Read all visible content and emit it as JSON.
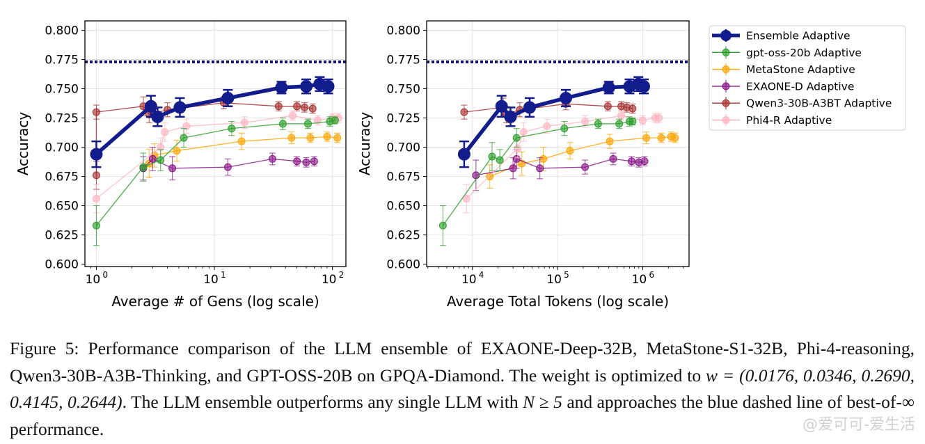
{
  "chart_data": [
    {
      "type": "scatter",
      "xlabel": "Average # of Gens (log scale)",
      "ylabel": "Accuracy",
      "xscale": "log",
      "xlim": [
        0.8,
        130
      ],
      "ylim": [
        0.598,
        0.808
      ],
      "yticks": [
        "0.600",
        "0.625",
        "0.650",
        "0.675",
        "0.700",
        "0.725",
        "0.750",
        "0.775",
        "0.800"
      ],
      "xticks": [
        {
          "v": 1,
          "b": "10",
          "e": "0"
        },
        {
          "v": 10,
          "b": "10",
          "e": "1"
        },
        {
          "v": 100,
          "b": "10",
          "e": "2"
        }
      ],
      "grid": true,
      "hline": 0.773,
      "series": [
        {
          "name": "gpt-oss-20b Adaptive",
          "color": "#2ca02c",
          "points": [
            [
              1,
              0.633,
              0.017
            ],
            [
              2.5,
              0.683,
              0.012
            ],
            [
              3.5,
              0.689,
              0.009
            ],
            [
              5.5,
              0.708,
              0.008
            ],
            [
              14,
              0.716,
              0.006
            ],
            [
              38,
              0.72,
              0.005
            ],
            [
              62,
              0.72,
              0.004
            ],
            [
              95,
              0.722,
              0.004
            ],
            [
              105,
              0.723,
              0.003
            ]
          ]
        },
        {
          "name": "MetaStone Adaptive",
          "color": "#ffa500",
          "points": [
            [
              2.8,
              0.686,
              0.012
            ],
            [
              3.1,
              0.693,
              0.01
            ],
            [
              4.8,
              0.697,
              0.009
            ],
            [
              17,
              0.705,
              0.007
            ],
            [
              45,
              0.708,
              0.005
            ],
            [
              65,
              0.708,
              0.004
            ],
            [
              90,
              0.709,
              0.004
            ],
            [
              110,
              0.708,
              0.004
            ]
          ]
        },
        {
          "name": "EXAONE-D Adaptive",
          "color": "#8b1a8b",
          "points": [
            [
              2.5,
              0.682,
              0.01
            ],
            [
              3.0,
              0.69,
              0.01
            ],
            [
              4.4,
              0.682,
              0.01
            ],
            [
              13,
              0.683,
              0.007
            ],
            [
              31,
              0.69,
              0.005
            ],
            [
              50,
              0.688,
              0.004
            ],
            [
              60,
              0.687,
              0.004
            ],
            [
              70,
              0.688,
              0.004
            ]
          ]
        },
        {
          "name": "Qwen3-30B-A3BT Adaptive",
          "color": "#a83232",
          "points": [
            [
              1,
              0.676,
              0.012
            ],
            [
              1,
              0.73,
              0.006
            ],
            [
              2.5,
              0.735,
              0.008
            ],
            [
              2.8,
              0.728,
              0.007
            ],
            [
              4,
              0.732,
              0.006
            ],
            [
              12,
              0.738,
              0.005
            ],
            [
              35,
              0.735,
              0.004
            ],
            [
              50,
              0.735,
              0.004
            ],
            [
              58,
              0.734,
              0.004
            ],
            [
              68,
              0.733,
              0.004
            ]
          ]
        },
        {
          "name": "Phi4-R Adaptive",
          "color": "#ffb6c1",
          "points": [
            [
              1,
              0.656,
              0.012
            ],
            [
              3.5,
              0.7,
              0.008
            ],
            [
              3.8,
              0.713,
              0.008
            ],
            [
              5.8,
              0.718,
              0.006
            ],
            [
              18,
              0.721,
              0.005
            ],
            [
              46,
              0.727,
              0.004
            ],
            [
              75,
              0.723,
              0.004
            ],
            [
              100,
              0.725,
              0.004
            ],
            [
              112,
              0.725,
              0.004
            ]
          ]
        },
        {
          "name": "Ensemble Adaptive",
          "color": "#131c8c",
          "points": [
            [
              1,
              0.694,
              0.011
            ],
            [
              2.9,
              0.735,
              0.009
            ],
            [
              3.3,
              0.726,
              0.008
            ],
            [
              5.1,
              0.734,
              0.008
            ],
            [
              13,
              0.742,
              0.007
            ],
            [
              37,
              0.751,
              0.005
            ],
            [
              60,
              0.752,
              0.006
            ],
            [
              78,
              0.754,
              0.006
            ],
            [
              92,
              0.752,
              0.006
            ]
          ]
        }
      ]
    },
    {
      "type": "scatter",
      "xlabel": "Average Total Tokens (log scale)",
      "ylabel": "Accuracy",
      "xscale": "log",
      "xlim": [
        2900,
        3500000
      ],
      "ylim": [
        0.598,
        0.808
      ],
      "yticks": [
        "0.600",
        "0.625",
        "0.650",
        "0.675",
        "0.700",
        "0.725",
        "0.750",
        "0.775",
        "0.800"
      ],
      "xticks": [
        {
          "v": 10000,
          "b": "10",
          "e": "4"
        },
        {
          "v": 100000,
          "b": "10",
          "e": "5"
        },
        {
          "v": 1000000,
          "b": "10",
          "e": "6"
        }
      ],
      "grid": true,
      "hline": 0.773,
      "series": [
        {
          "name": "gpt-oss-20b Adaptive",
          "color": "#2ca02c",
          "points": [
            [
              4500,
              0.633,
              0.017
            ],
            [
              17000,
              0.692,
              0.012
            ],
            [
              21000,
              0.689,
              0.009
            ],
            [
              33000,
              0.708,
              0.008
            ],
            [
              120000,
              0.716,
              0.006
            ],
            [
              300000,
              0.72,
              0.004
            ],
            [
              530000,
              0.72,
              0.004
            ],
            [
              700000,
              0.722,
              0.004
            ],
            [
              760000,
              0.722,
              0.003
            ]
          ]
        },
        {
          "name": "MetaStone Adaptive",
          "color": "#ffa500",
          "points": [
            [
              16000,
              0.675,
              0.01
            ],
            [
              38000,
              0.686,
              0.01
            ],
            [
              68000,
              0.69,
              0.01
            ],
            [
              140000,
              0.697,
              0.007
            ],
            [
              410000,
              0.705,
              0.006
            ],
            [
              1100000,
              0.708,
              0.005
            ],
            [
              1650000,
              0.708,
              0.004
            ],
            [
              2150000,
              0.709,
              0.004
            ],
            [
              2400000,
              0.708,
              0.004
            ]
          ]
        },
        {
          "name": "EXAONE-D Adaptive",
          "color": "#8b1a8b",
          "points": [
            [
              11000,
              0.676,
              0.013
            ],
            [
              30000,
              0.682,
              0.009
            ],
            [
              33000,
              0.69,
              0.008
            ],
            [
              62000,
              0.682,
              0.009
            ],
            [
              210000,
              0.683,
              0.006
            ],
            [
              450000,
              0.69,
              0.005
            ],
            [
              740000,
              0.688,
              0.004
            ],
            [
              900000,
              0.687,
              0.004
            ],
            [
              1050000,
              0.688,
              0.004
            ]
          ]
        },
        {
          "name": "Qwen3-30B-A3BT Adaptive",
          "color": "#a83232",
          "points": [
            [
              8000,
              0.73,
              0.006
            ],
            [
              23000,
              0.734,
              0.008
            ],
            [
              25000,
              0.728,
              0.007
            ],
            [
              36000,
              0.732,
              0.006
            ],
            [
              125000,
              0.737,
              0.005
            ],
            [
              390000,
              0.735,
              0.004
            ],
            [
              560000,
              0.735,
              0.004
            ],
            [
              650000,
              0.734,
              0.004
            ],
            [
              760000,
              0.733,
              0.004
            ]
          ]
        },
        {
          "name": "Phi4-R Adaptive",
          "color": "#ffb6c1",
          "points": [
            [
              8500,
              0.656,
              0.012
            ],
            [
              34000,
              0.699,
              0.008
            ],
            [
              40000,
              0.713,
              0.008
            ],
            [
              75000,
              0.718,
              0.006
            ],
            [
              210000,
              0.722,
              0.005
            ],
            [
              560000,
              0.727,
              0.004
            ],
            [
              1000000,
              0.723,
              0.004
            ],
            [
              1400000,
              0.725,
              0.004
            ],
            [
              1550000,
              0.725,
              0.004
            ]
          ]
        },
        {
          "name": "Ensemble Adaptive",
          "color": "#131c8c",
          "points": [
            [
              8000,
              0.694,
              0.011
            ],
            [
              22000,
              0.735,
              0.009
            ],
            [
              28000,
              0.726,
              0.008
            ],
            [
              47000,
              0.734,
              0.008
            ],
            [
              125000,
              0.742,
              0.007
            ],
            [
              400000,
              0.751,
              0.005
            ],
            [
              700000,
              0.752,
              0.006
            ],
            [
              890000,
              0.754,
              0.006
            ],
            [
              1030000,
              0.752,
              0.006
            ]
          ]
        }
      ]
    }
  ],
  "legend": {
    "placement": "right",
    "entries": [
      {
        "label": "Ensemble Adaptive",
        "color": "#131c8c",
        "bold": true
      },
      {
        "label": "gpt-oss-20b Adaptive",
        "color": "#2ca02c"
      },
      {
        "label": "MetaStone Adaptive",
        "color": "#ffa500"
      },
      {
        "label": "EXAONE-D Adaptive",
        "color": "#8b1a8b"
      },
      {
        "label": "Qwen3-30B-A3BT Adaptive",
        "color": "#a83232"
      },
      {
        "label": "Phi4-R Adaptive",
        "color": "#ffb6c1"
      }
    ]
  },
  "caption": {
    "part1": "Figure 5: Performance comparison of the LLM ensemble of EXAONE-Deep-32B, MetaStone-S1-32B, Phi-4-reasoning, Qwen3-30B-A3B-Thinking, and GPT-OSS-20B on GPQA-Diamond. The weight is optimized to ",
    "math1": "w = (0.0176, 0.0346, 0.2690, 0.4145, 0.2644)",
    "part2": ". The LLM ensemble outperforms any single LLM with ",
    "math2": "N ≥ 5",
    "part3": " and approaches the blue dashed line of best-of-∞ performance."
  },
  "watermark": "@爱可可-爱生活"
}
